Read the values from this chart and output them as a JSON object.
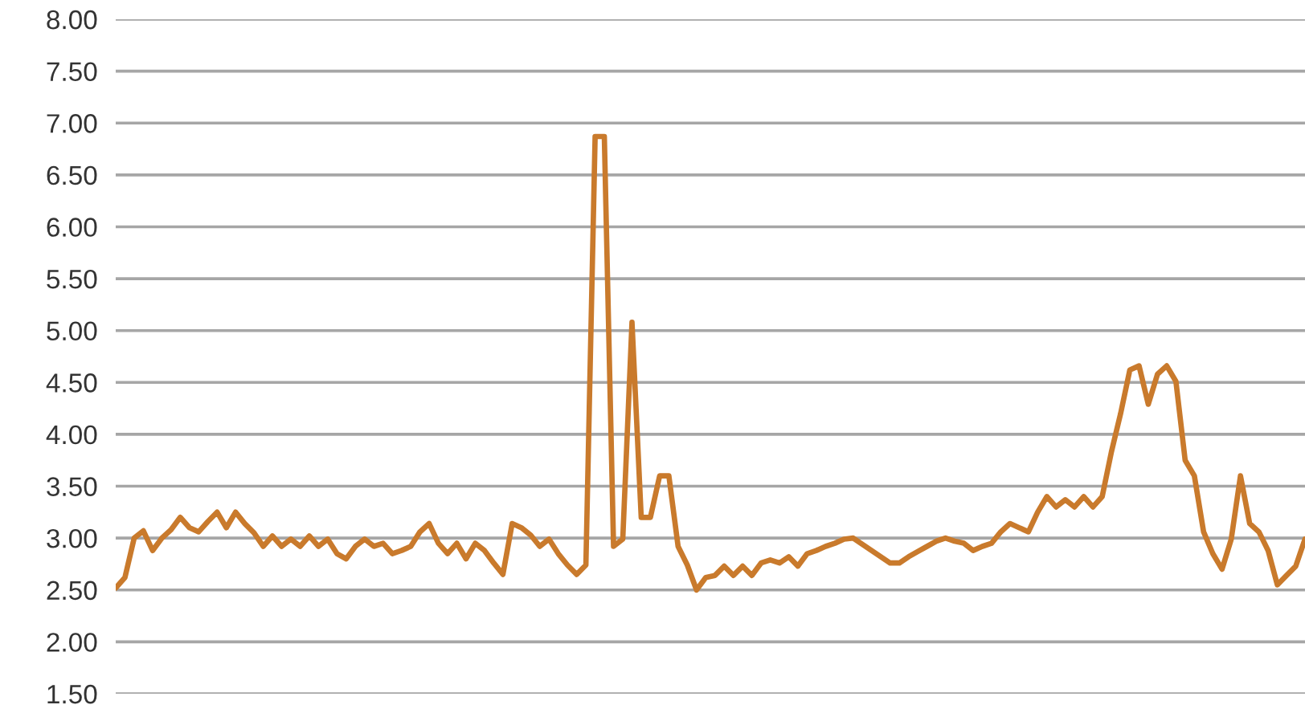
{
  "chart_data": {
    "type": "line",
    "color": "#c97a2c",
    "categories": [
      null,
      null,
      null,
      null,
      null,
      null,
      null,
      null,
      null,
      null,
      null,
      null,
      null,
      null,
      null,
      null,
      null,
      null,
      null,
      null,
      null,
      null,
      null,
      null,
      null,
      null,
      null,
      null,
      null,
      null,
      null,
      null,
      null,
      null,
      null,
      null,
      null,
      null,
      null,
      null,
      null,
      null,
      null,
      null,
      null,
      null,
      null,
      null,
      null,
      null,
      null,
      null,
      null,
      null,
      null,
      null,
      null,
      null,
      null,
      null,
      null,
      null,
      null,
      null,
      null,
      null,
      null,
      null,
      null,
      null,
      null,
      null,
      null,
      null,
      null,
      null,
      null,
      null,
      null,
      null,
      null,
      null,
      null,
      null,
      null,
      null,
      null,
      null,
      null,
      null,
      null,
      null,
      null,
      null,
      null,
      null,
      null,
      null,
      null,
      null,
      null,
      null,
      null,
      null,
      null,
      null,
      null,
      null,
      null,
      null,
      null,
      null,
      null,
      null,
      null,
      null,
      null,
      null,
      null,
      null,
      null,
      null,
      null,
      null,
      null,
      null,
      null,
      null,
      null,
      null
    ],
    "values": [
      2.52,
      2.62,
      3.0,
      3.07,
      2.88,
      3.0,
      3.08,
      3.2,
      3.1,
      3.06,
      3.16,
      3.25,
      3.1,
      3.25,
      3.14,
      3.05,
      2.92,
      3.02,
      2.92,
      2.99,
      2.92,
      3.02,
      2.92,
      2.99,
      2.85,
      2.8,
      2.92,
      2.99,
      2.92,
      2.95,
      2.85,
      2.88,
      2.92,
      3.06,
      3.14,
      2.95,
      2.85,
      2.95,
      2.8,
      2.95,
      2.88,
      2.76,
      2.65,
      3.14,
      3.1,
      3.03,
      2.92,
      2.99,
      2.85,
      2.74,
      2.65,
      2.74,
      6.87,
      6.87,
      2.92,
      2.99,
      5.08,
      3.2,
      3.2,
      3.6,
      3.6,
      2.92,
      2.74,
      2.5,
      2.62,
      2.64,
      2.73,
      2.64,
      2.73,
      2.64,
      2.76,
      2.79,
      2.76,
      2.82,
      2.73,
      2.85,
      2.88,
      2.92,
      2.95,
      2.99,
      3.0,
      2.94,
      2.88,
      2.82,
      2.76,
      2.76,
      2.82,
      2.87,
      2.92,
      2.97,
      3.0,
      2.97,
      2.95,
      2.88,
      2.92,
      2.95,
      3.06,
      3.14,
      3.1,
      3.06,
      3.25,
      3.4,
      3.3,
      3.37,
      3.3,
      3.4,
      3.3,
      3.4,
      3.83,
      4.2,
      4.62,
      4.66,
      4.29,
      4.58,
      4.66,
      4.51,
      3.75,
      3.6,
      3.06,
      2.85,
      2.7,
      2.99,
      3.6,
      3.14,
      3.06,
      2.88,
      2.55,
      2.64,
      2.73,
      2.99
    ],
    "ylim": [
      1.5,
      8.0
    ],
    "yticks": [
      {
        "value": 1.5,
        "label": "1.50"
      },
      {
        "value": 2.0,
        "label": "2.00"
      },
      {
        "value": 2.5,
        "label": "2.50"
      },
      {
        "value": 3.0,
        "label": "3.00"
      },
      {
        "value": 3.5,
        "label": "3.50"
      },
      {
        "value": 4.0,
        "label": "4.00"
      },
      {
        "value": 4.5,
        "label": "4.50"
      },
      {
        "value": 5.0,
        "label": "5.00"
      },
      {
        "value": 5.5,
        "label": "5.50"
      },
      {
        "value": 6.0,
        "label": "6.00"
      },
      {
        "value": 6.5,
        "label": "6.50"
      },
      {
        "value": 7.0,
        "label": "7.00"
      },
      {
        "value": 7.5,
        "label": "7.50"
      },
      {
        "value": 8.0,
        "label": "8.00"
      }
    ],
    "grid": "y",
    "tick_labels": "y"
  }
}
